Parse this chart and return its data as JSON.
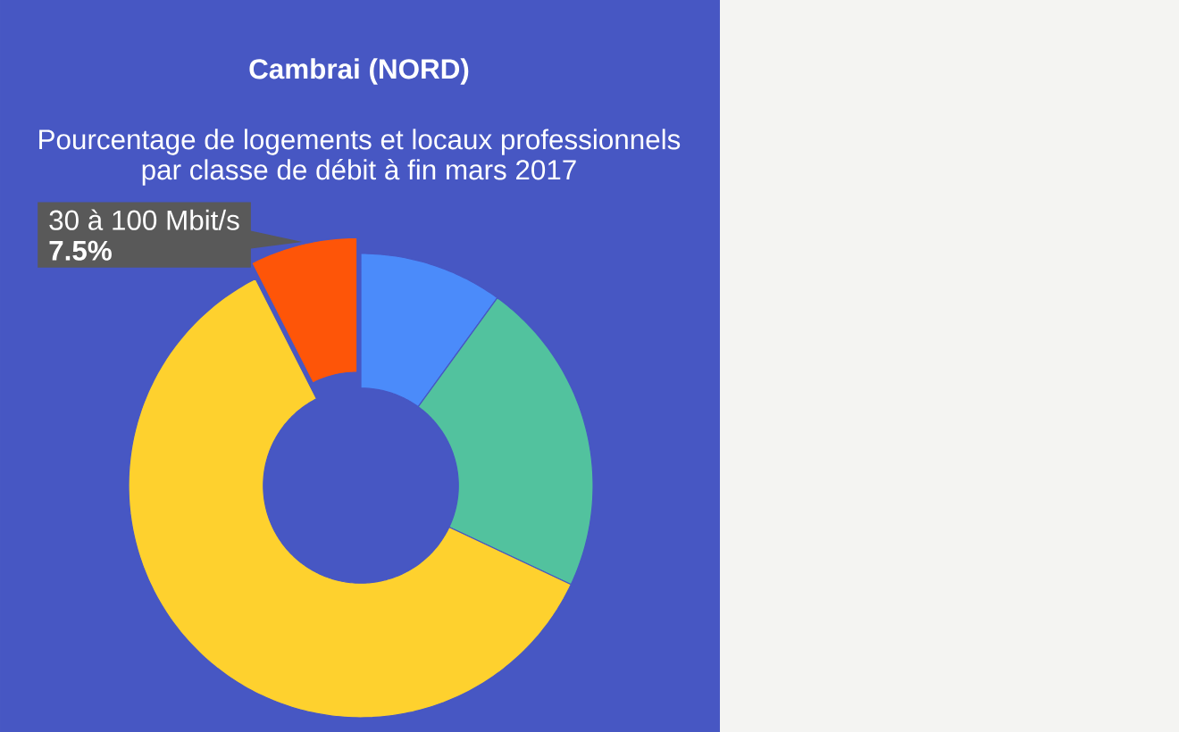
{
  "chart_data": {
    "type": "donut",
    "title": "Cambrai (NORD)",
    "subtitle": "Pourcentage de logements et locaux professionnels par classe de débit à fin mars 2017",
    "categories": [
      null,
      null,
      null,
      "30 à 100 Mbit/s"
    ],
    "values": [
      10,
      22,
      60.5,
      7.5
    ],
    "colors": [
      "#4b8bfa",
      "#52c29e",
      "#fed12e",
      "#fe5508"
    ],
    "value_labels": [
      null,
      null,
      null,
      "7.5%"
    ]
  }
}
